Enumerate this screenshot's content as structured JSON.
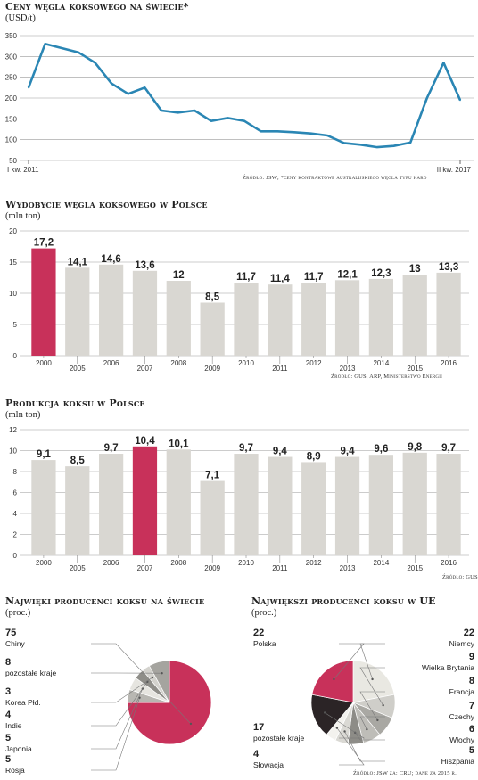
{
  "titles": {
    "coal_price": "Ceny węgla koksowego na świecie*",
    "coal_price_unit": "(USD/t)",
    "coal_price_source": "Źródło: JSW; *ceny kontraktowe australijskiego węgla typu hard",
    "coal_mining": "Wydobycie węgla koksowego w Polsce",
    "coal_mining_unit": "(mln ton)",
    "coal_mining_source": "Źródło: GUS, ARP, Ministerstwo Energii",
    "coke_prod": "Produkcja koksu w Polsce",
    "coke_prod_unit": "(mln ton)",
    "coke_prod_source": "Źródło: GUS",
    "world": "Najwięki producenci koksu na świecie",
    "world_unit": "(proc.)",
    "eu": "Największi producenci koksu w UE",
    "eu_unit": "(proc.)",
    "eu_source": "Źródło: JSW za: CRU; dane za 2015 r."
  },
  "colors": {
    "line": "#2a86b4",
    "bar": "#d9d7d2",
    "highlight": "#c8315a",
    "grid": "#9a9a9a"
  },
  "chart_data": [
    {
      "type": "line",
      "title": "Ceny węgla koksowego na świecie*",
      "ylabel": "(USD/t)",
      "ylim": [
        50,
        350
      ],
      "yticks": [
        50,
        100,
        150,
        200,
        250,
        300,
        350
      ],
      "x_start_label": "I kw. 2011",
      "x_end_label": "II kw. 2017",
      "values": [
        225,
        330,
        320,
        310,
        285,
        235,
        210,
        225,
        170,
        165,
        170,
        145,
        152,
        145,
        120,
        120,
        118,
        115,
        110,
        92,
        88,
        82,
        85,
        93,
        200,
        285,
        195
      ],
      "grid": true
    },
    {
      "type": "bar",
      "title": "Wydobycie węgla koksowego w Polsce",
      "ylabel": "(mln ton)",
      "ylim": [
        0,
        20
      ],
      "yticks": [
        0,
        5,
        10,
        15,
        20
      ],
      "categories": [
        "2000",
        "2005",
        "2006",
        "2007",
        "2008",
        "2009",
        "2010",
        "2011",
        "2012",
        "2013",
        "2014",
        "2015",
        "2016"
      ],
      "values": [
        17.2,
        14.1,
        14.6,
        13.6,
        12,
        8.5,
        11.7,
        11.4,
        11.7,
        12.1,
        12.3,
        13,
        13.3
      ],
      "labels": [
        "17,2",
        "14,1",
        "14,6",
        "13,6",
        "12",
        "8,5",
        "11,7",
        "11,4",
        "11,7",
        "12,1",
        "12,3",
        "13",
        "13,3"
      ],
      "highlight_index": 0
    },
    {
      "type": "bar",
      "title": "Produkcja koksu w Polsce",
      "ylabel": "(mln ton)",
      "ylim": [
        0,
        12
      ],
      "yticks": [
        0,
        2,
        4,
        6,
        8,
        10,
        12
      ],
      "categories": [
        "2000",
        "2005",
        "2006",
        "2007",
        "2008",
        "2009",
        "2010",
        "2011",
        "2012",
        "2013",
        "2014",
        "2015",
        "2016"
      ],
      "values": [
        9.1,
        8.5,
        9.7,
        10.4,
        10.1,
        7.1,
        9.7,
        9.4,
        8.9,
        9.4,
        9.6,
        9.8,
        9.7
      ],
      "labels": [
        "9,1",
        "8,5",
        "9,7",
        "10,4",
        "10,1",
        "7,1",
        "9,7",
        "9,4",
        "8,9",
        "9,4",
        "9,6",
        "9,8",
        "9,7"
      ],
      "highlight_index": 3
    },
    {
      "type": "pie",
      "title": "Najwięki producenci koksu na świecie",
      "unit": "(proc.)",
      "slices": [
        {
          "name": "Chiny",
          "value": 75,
          "label": "75",
          "color": "#c8315a"
        },
        {
          "name": "Rosja",
          "value": 5,
          "label": "5",
          "color": "#b8b7b2"
        },
        {
          "name": "Japonia",
          "value": 5,
          "label": "5",
          "color": "#e6e5e0"
        },
        {
          "name": "Indie",
          "value": 4,
          "label": "4",
          "color": "#8f8e89"
        },
        {
          "name": "Korea Płd.",
          "value": 3,
          "label": "3",
          "color": "#d3d2cd"
        },
        {
          "name": "pozostałe kraje",
          "value": 8,
          "label": "8",
          "color": "#a5a49f"
        }
      ]
    },
    {
      "type": "pie",
      "title": "Największi producenci koksu w UE",
      "unit": "(proc.)",
      "slices": [
        {
          "name": "Niemcy",
          "value": 22,
          "label": "22",
          "color": "#e9e8e2"
        },
        {
          "name": "Wielka Brytania",
          "value": 9,
          "label": "9",
          "color": "#cfcec9"
        },
        {
          "name": "Francja",
          "value": 8,
          "label": "8",
          "color": "#a9a8a3"
        },
        {
          "name": "Czechy",
          "value": 7,
          "label": "7",
          "color": "#bebdb8"
        },
        {
          "name": "Włochy",
          "value": 6,
          "label": "6",
          "color": "#8d8c87"
        },
        {
          "name": "Hiszpania",
          "value": 5,
          "label": "5",
          "color": "#dad9d4"
        },
        {
          "name": "Słowacja",
          "value": 4,
          "label": "4",
          "color": "#f3f2ee"
        },
        {
          "name": "pozostałe kraje",
          "value": 17,
          "label": "17",
          "color": "#2b2426"
        },
        {
          "name": "Polska",
          "value": 22,
          "label": "22",
          "color": "#c8315a"
        }
      ]
    }
  ]
}
